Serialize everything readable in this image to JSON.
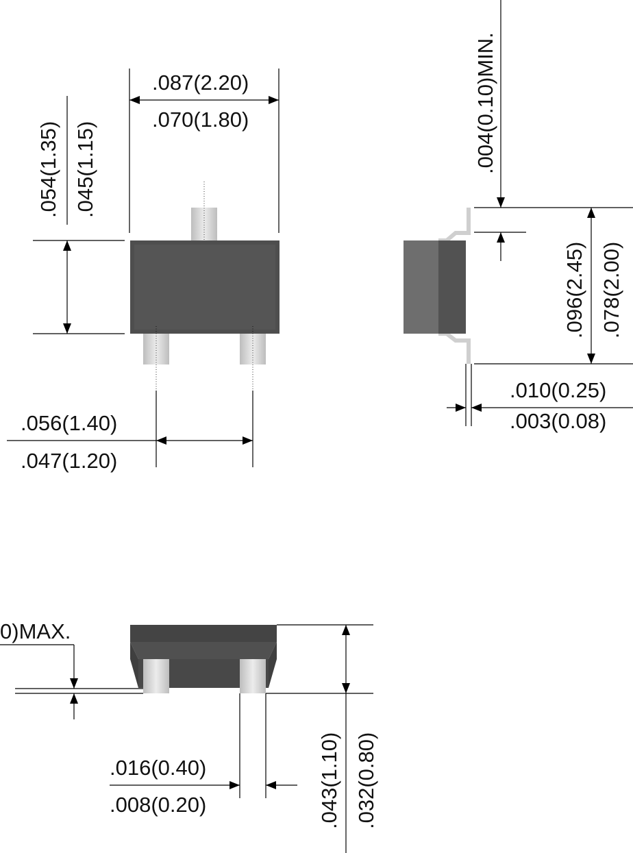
{
  "dimensions": {
    "top_width_max": ".087(2.20)",
    "top_width_min": ".070(1.80)",
    "body_width_max": ".054(1.35)",
    "body_width_min": ".045(1.15)",
    "lead_spacing_max": ".056(1.40)",
    "lead_spacing_min": ".047(1.20)",
    "lead_clearance": ".004(0.10)MIN.",
    "overall_length_max": ".096(2.45)",
    "overall_length_min": ".078(2.00)",
    "lead_thickness_max": ".010(0.25)",
    "lead_thickness_min": ".003(0.08)",
    "standoff_max": "0)MAX.",
    "lead_width_max": ".016(0.40)",
    "lead_width_min": ".008(0.20)",
    "height_max": ".043(1.10)",
    "height_min": ".032(0.80)"
  },
  "colors": {
    "body_dark": "#4a4a4a",
    "body_side": "#545454",
    "body_front": "#6e6e6e",
    "lead": "#cfcfcf",
    "lead_light": "#e3e3e3"
  }
}
